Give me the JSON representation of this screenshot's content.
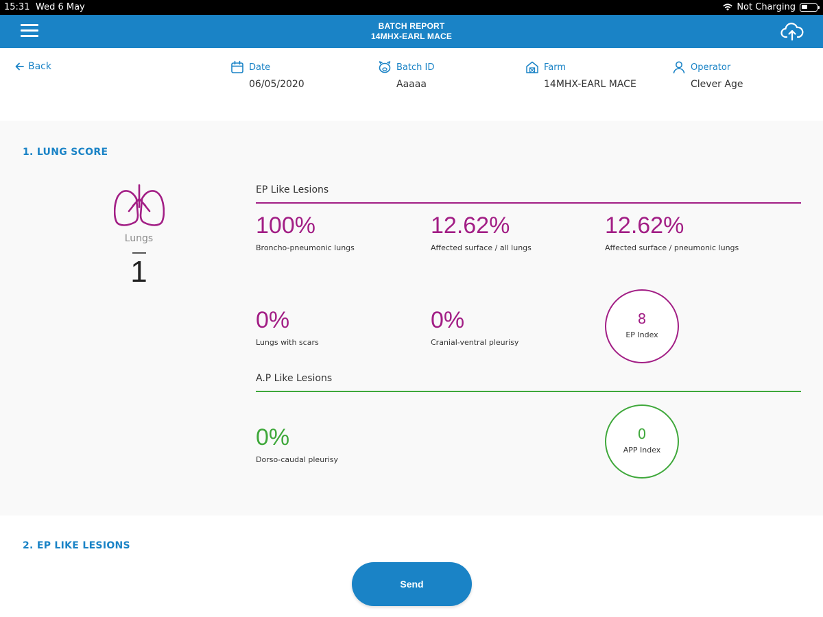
{
  "status_bar": {
    "time": "15:31",
    "date": "Wed 6 May",
    "charging": "Not Charging"
  },
  "nav": {
    "title": "BATCH REPORT",
    "subtitle": "14MHX-EARL MACE",
    "menu_icon": "hamburger-icon",
    "upload_icon": "cloud-upload-icon"
  },
  "header": {
    "back_label": "Back",
    "date_label": "Date",
    "date_value": "06/05/2020",
    "batch_label": "Batch ID",
    "batch_value": "Aaaaa",
    "farm_label": "Farm",
    "farm_value": "14MHX-EARL MACE",
    "operator_label": "Operator",
    "operator_value": "Clever Age"
  },
  "lung_score": {
    "section_title": "1. LUNG SCORE",
    "lungs_label": "Lungs",
    "lungs_count": "1",
    "ep": {
      "title": "EP Like Lesions",
      "broncho_value": "100%",
      "broncho_label": "Broncho-pneumonic lungs",
      "affected_all_value": "12.62%",
      "affected_all_label": "Affected surface / all lungs",
      "affected_pneumonic_value": "12.62%",
      "affected_pneumonic_label": "Affected surface / pneumonic lungs",
      "scars_value": "0%",
      "scars_label": "Lungs with scars",
      "cranial_value": "0%",
      "cranial_label": "Cranial-ventral pleurisy",
      "index_value": "8",
      "index_label": "EP Index"
    },
    "ap": {
      "title": "A.P Like Lesions",
      "dorso_value": "0%",
      "dorso_label": "Dorso-caudal pleurisy",
      "index_value": "0",
      "index_label": "APP Index"
    }
  },
  "ep_lesions_section": {
    "title": "2. EP LIKE LESIONS"
  },
  "send_label": "Send",
  "colors": {
    "primary": "#1a83c6",
    "ep": "#a21e85",
    "ap": "#3fa83b"
  }
}
